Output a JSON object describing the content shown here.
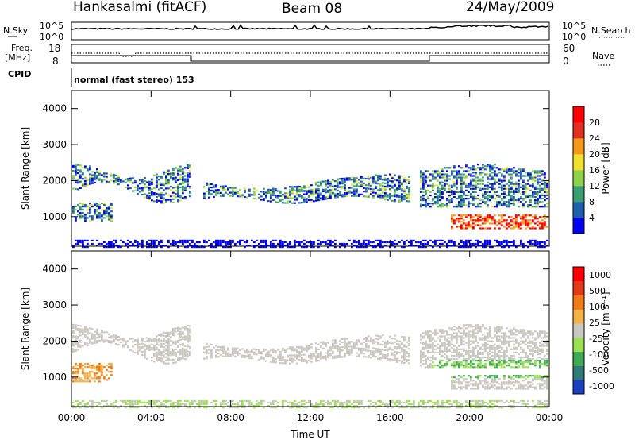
{
  "header": {
    "station": "Hankasalmi (fitACF)",
    "beam": "Beam 08",
    "date": "24/May/2009"
  },
  "noise_panel": {
    "left_label": "N.Sky",
    "right_label": "N.Search",
    "left_ticks": [
      "10^5",
      "10^0"
    ],
    "right_ticks": [
      "10^5",
      "10^0"
    ]
  },
  "freq_panel": {
    "left_label_line1": "Freq.",
    "left_label_line2": "[MHz]",
    "left_ticks": [
      "18",
      "8"
    ],
    "right_label": "Nave",
    "right_ticks": [
      "60",
      "0"
    ]
  },
  "cpid_panel": {
    "label": "CPID",
    "text": "normal (fast stereo) 153"
  },
  "chart_data": [
    {
      "type": "heatmap",
      "name": "power",
      "ylabel": "Slant Range [km]",
      "y_ticks": [
        "1000",
        "2000",
        "3000",
        "4000"
      ],
      "ylim": [
        180,
        4500
      ],
      "xlim": [
        0,
        24
      ],
      "colorbar_label": "Power [dB]",
      "colorbar_ticks": [
        "4",
        "8",
        "12",
        "16",
        "20",
        "24",
        "28"
      ],
      "colors": [
        "#0000ee",
        "#1d5fa8",
        "#3a9e72",
        "#8fd14a",
        "#f2e030",
        "#f39a1c",
        "#e03020",
        "#ff0000"
      ]
    },
    {
      "type": "heatmap",
      "name": "velocity",
      "ylabel": "Slant Range [km]",
      "y_ticks": [
        "1000",
        "2000",
        "3000",
        "4000"
      ],
      "ylim": [
        180,
        4500
      ],
      "xlim": [
        0,
        24
      ],
      "colorbar_label": "Velocity [m s⁻¹]",
      "colorbar_ticks": [
        "1000",
        "500",
        "100",
        "25",
        "-25",
        "-100",
        "-500",
        "-1000"
      ],
      "colors": [
        "#1a3fc0",
        "#2f7a78",
        "#3faa55",
        "#9be052",
        "#c8c8c0",
        "#f3b24a",
        "#f07a18",
        "#e03a18",
        "#ff0000"
      ]
    }
  ],
  "x_axis": {
    "ticks": [
      "00:00",
      "04:00",
      "08:00",
      "12:00",
      "16:00",
      "20:00",
      "00:00"
    ],
    "label": "Time UT"
  }
}
